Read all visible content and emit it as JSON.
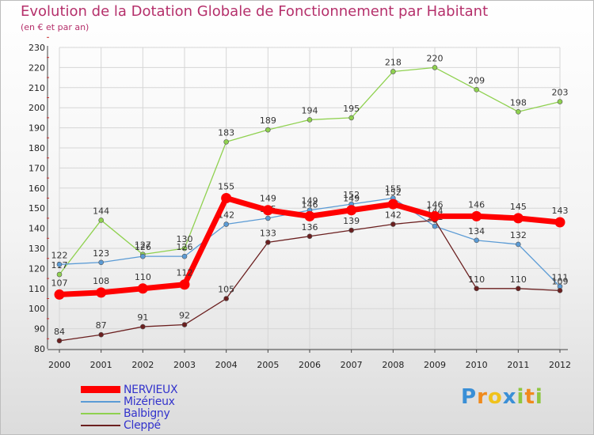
{
  "chart_data": {
    "type": "line",
    "title": "Evolution de la Dotation Globale de Fonctionnement par Habitant",
    "subtitle": "(en € et par an)",
    "xlabel": "",
    "ylabel": "",
    "x": [
      "2000",
      "2001",
      "2002",
      "2003",
      "2004",
      "2005",
      "2006",
      "2007",
      "2008",
      "2009",
      "2010",
      "2011",
      "2012"
    ],
    "ylim": [
      80,
      230
    ],
    "yticks": [
      80,
      90,
      100,
      110,
      120,
      130,
      140,
      150,
      160,
      170,
      180,
      190,
      200,
      210,
      220,
      230
    ],
    "grid": true,
    "legend_position": "bottom-left",
    "series": [
      {
        "name": "Balbigny",
        "color": "#8fd14f",
        "values": [
          117,
          144,
          127,
          130,
          183,
          189,
          194,
          195,
          218,
          220,
          209,
          198,
          203
        ]
      },
      {
        "name": "Mizérieux",
        "color": "#5b9bd5",
        "values": [
          122,
          123,
          126,
          126,
          142,
          145,
          149,
          152,
          155,
          141,
          134,
          132,
          111
        ]
      },
      {
        "name": "Cleppé",
        "color": "#6b1f1f",
        "values": [
          84,
          87,
          91,
          92,
          105,
          133,
          136,
          139,
          142,
          144,
          110,
          110,
          109
        ]
      },
      {
        "name": "NERVIEUX",
        "color": "#ff0000",
        "values": [
          107,
          108,
          110,
          112,
          155,
          149,
          146,
          149,
          152,
          146,
          146,
          145,
          143
        ]
      }
    ]
  },
  "legend": {
    "items": [
      {
        "label": "NERVIEUX",
        "color": "#ff0000"
      },
      {
        "label": "Mizérieux",
        "color": "#5b9bd5"
      },
      {
        "label": "Balbigny",
        "color": "#8fd14f"
      },
      {
        "label": "Cleppé",
        "color": "#6b1f1f"
      }
    ]
  },
  "logo": {
    "letters": [
      "P",
      "r",
      "o",
      "x",
      "i",
      "t",
      "i"
    ],
    "colors": [
      "#3a8fd6",
      "#f08a1c",
      "#f0c21c",
      "#3a8fd6",
      "#8fc63f",
      "#f08a1c",
      "#8fc63f"
    ]
  }
}
